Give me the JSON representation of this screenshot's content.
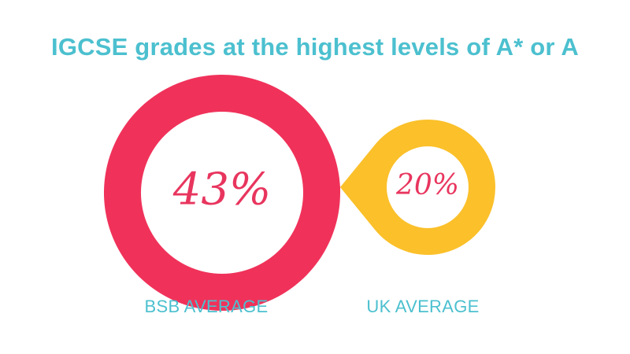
{
  "header": {
    "title": "IGCSE grades at the highest levels of A* or A"
  },
  "colors": {
    "title": "#4cc0cf",
    "label": "#4cc0cf",
    "value_text": "#e8355e",
    "bsb": "#f0325a",
    "uk": "#fbc02a"
  },
  "chart_data": {
    "type": "bar",
    "title": "IGCSE grades at the highest levels of A* or A",
    "categories": [
      "BSB AVERAGE",
      "UK AVERAGE"
    ],
    "values": [
      43,
      20
    ],
    "value_labels": [
      "43%",
      "20%"
    ],
    "unit": "%"
  }
}
